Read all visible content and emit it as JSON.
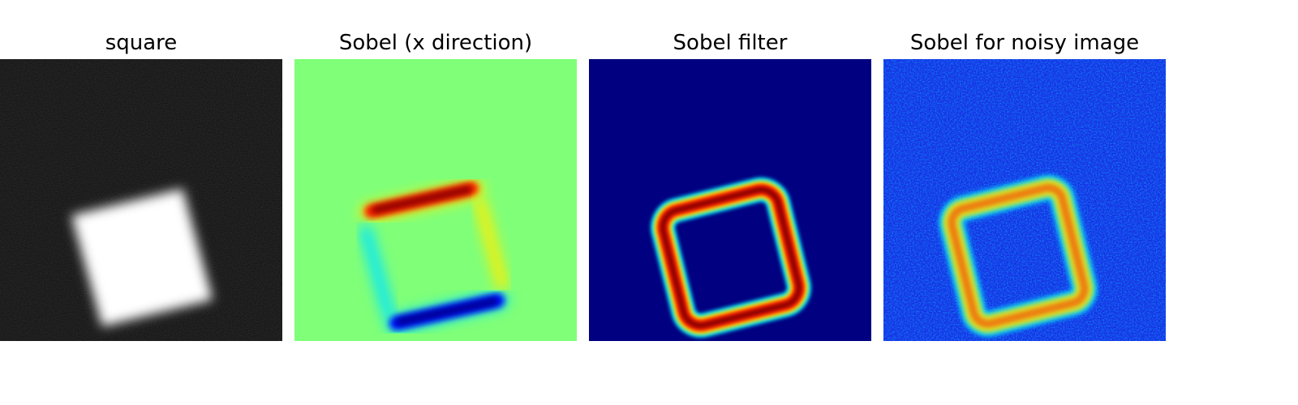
{
  "figure": {
    "panels": [
      {
        "title": "square",
        "colormap": "gray"
      },
      {
        "title": "Sobel (x direction)",
        "colormap": "jet"
      },
      {
        "title": "Sobel filter",
        "colormap": "jet"
      },
      {
        "title": "Sobel for noisy image",
        "colormap": "jet"
      }
    ]
  },
  "colors": {
    "background_square": "#080808",
    "square_fill": "#ffffff",
    "sobel_x_background": "#80ff78",
    "sobel_filter_background": "#000080",
    "noisy_background": "#1c3cf0",
    "edge_hot": "#8b0000",
    "edge_red": "#ff2000",
    "edge_yellow": "#ffee00",
    "edge_cyan": "#00e5ff",
    "edge_blue": "#0010ff",
    "edge_dark_blue": "#000090"
  }
}
